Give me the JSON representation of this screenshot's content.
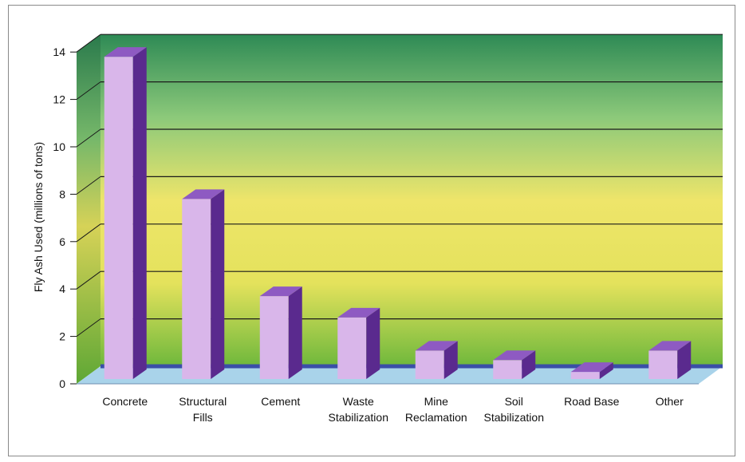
{
  "chart_data": {
    "type": "bar",
    "title": "",
    "xlabel": "",
    "ylabel": "Fly Ash Used (millions of tons)",
    "ylim": [
      0,
      14
    ],
    "yticks": [
      0,
      2,
      4,
      6,
      8,
      10,
      12,
      14
    ],
    "grid": true,
    "categories": [
      [
        "Concrete"
      ],
      [
        "Structural",
        "Fills"
      ],
      [
        "Cement"
      ],
      [
        "Waste",
        "Stabilization"
      ],
      [
        "Mine",
        "Reclamation"
      ],
      [
        "Soil",
        "Stabilization"
      ],
      [
        "Road Base"
      ],
      [
        "Other"
      ]
    ],
    "values": [
      13.8,
      7.8,
      3.7,
      2.8,
      1.4,
      1.0,
      0.5,
      1.4
    ]
  },
  "colors": {
    "bar_front": "#d9b6ea",
    "bar_side": "#5a2a8e",
    "bar_top": "#8e5ac2",
    "floor": "#a9d3ea",
    "floor_edge": "#3a4fa8",
    "grid": "#1a1a1a",
    "wall_top": "#2e8f5a",
    "wall_mid": "#eee56a",
    "wall_bottom": "#7fc140"
  }
}
